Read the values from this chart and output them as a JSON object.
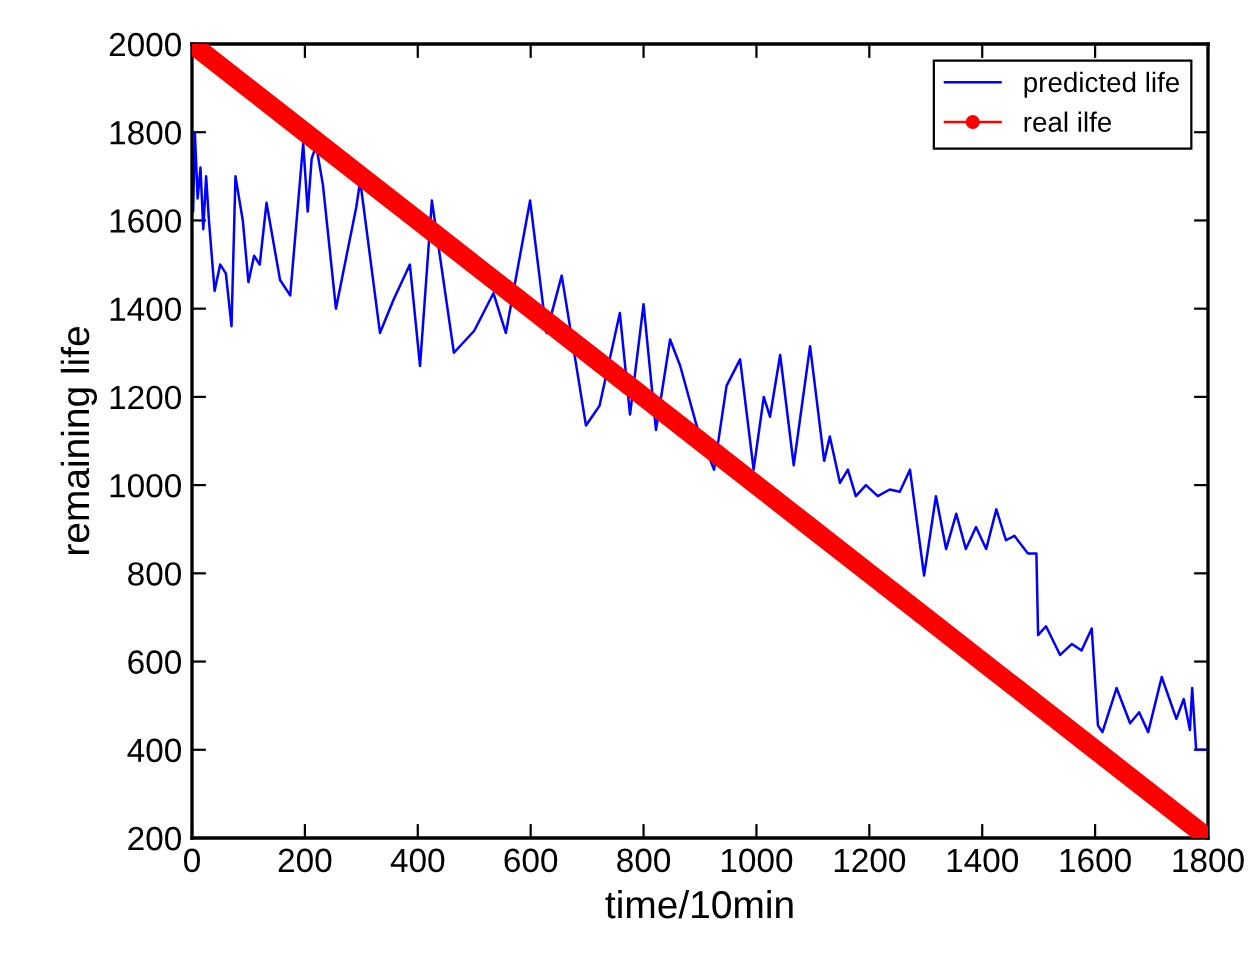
{
  "chart_data": {
    "type": "line",
    "xlabel": "time/10min",
    "ylabel": "remaining life",
    "xlim": [
      0,
      1800
    ],
    "ylim": [
      200,
      2000
    ],
    "xticks": [
      0,
      200,
      400,
      600,
      800,
      1000,
      1200,
      1400,
      1600,
      1800
    ],
    "yticks": [
      200,
      400,
      600,
      800,
      1000,
      1200,
      1400,
      1600,
      1800,
      2000
    ],
    "grid": false,
    "legend": "top right",
    "series": [
      {
        "name": "predicted life",
        "color": "#0000ff",
        "marker": "none",
        "x": [
          2,
          5,
          10,
          15,
          20,
          25,
          30,
          40,
          50,
          60,
          70,
          77,
          90,
          100,
          110,
          120,
          132,
          156,
          174,
          197,
          205,
          212,
          220,
          232,
          255,
          291,
          298,
          333,
          357,
          386,
          404,
          425,
          464,
          500,
          534,
          556,
          599,
          628,
          655,
          698,
          722,
          758,
          776,
          800,
          822,
          847,
          865,
          894,
          925,
          947,
          971,
          995,
          1013,
          1024,
          1042,
          1066,
          1095,
          1120,
          1130,
          1148,
          1162,
          1176,
          1194,
          1215,
          1236,
          1254,
          1272,
          1297,
          1318,
          1336,
          1354,
          1371,
          1389,
          1407,
          1425,
          1442,
          1457,
          1481,
          1496,
          1499,
          1513,
          1538,
          1559,
          1576,
          1594,
          1605,
          1613,
          1638,
          1662,
          1678,
          1694,
          1718,
          1744,
          1757,
          1768,
          1772,
          1779,
          1800
        ],
        "values": [
          1620,
          1800,
          1650,
          1720,
          1580,
          1700,
          1600,
          1440,
          1500,
          1480,
          1360,
          1700,
          1600,
          1460,
          1520,
          1500,
          1640,
          1465,
          1430,
          1775,
          1620,
          1740,
          1770,
          1680,
          1400,
          1630,
          1690,
          1345,
          1420,
          1500,
          1270,
          1645,
          1300,
          1350,
          1435,
          1345,
          1645,
          1345,
          1475,
          1135,
          1180,
          1390,
          1160,
          1410,
          1125,
          1330,
          1270,
          1135,
          1035,
          1225,
          1285,
          1035,
          1200,
          1155,
          1295,
          1045,
          1315,
          1055,
          1110,
          1005,
          1035,
          975,
          1000,
          975,
          990,
          985,
          1035,
          795,
          975,
          855,
          935,
          855,
          905,
          855,
          945,
          875,
          885,
          845,
          845,
          660,
          680,
          615,
          640,
          625,
          675,
          455,
          440,
          540,
          460,
          485,
          440,
          565,
          470,
          515,
          445,
          540,
          400,
          400
        ]
      },
      {
        "name": "real ilfe",
        "color": "#ff0000",
        "marker": "circle",
        "x": [
          0,
          100,
          200,
          300,
          400,
          500,
          600,
          700,
          800,
          900,
          1000,
          1100,
          1200,
          1300,
          1400,
          1500,
          1600,
          1700,
          1800
        ],
        "values": [
          2000,
          1900,
          1800,
          1700,
          1600,
          1500,
          1400,
          1300,
          1200,
          1100,
          1000,
          900,
          800,
          700,
          600,
          500,
          400,
          300,
          200
        ]
      }
    ]
  }
}
